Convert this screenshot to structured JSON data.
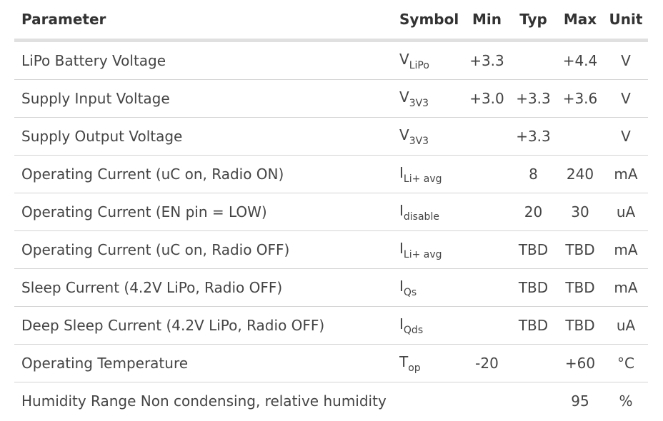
{
  "header": {
    "parameter": "Parameter",
    "symbol": "Symbol",
    "min": "Min",
    "typ": "Typ",
    "max": "Max",
    "unit": "Unit"
  },
  "rows": [
    {
      "parameter": "LiPo Battery Voltage",
      "symbol_base": "V",
      "symbol_sub": "LiPo",
      "min": "+3.3",
      "typ": "",
      "max": "+4.4",
      "unit": "V"
    },
    {
      "parameter": "Supply Input Voltage",
      "symbol_base": "V",
      "symbol_sub": "3V3",
      "min": "+3.0",
      "typ": "+3.3",
      "max": "+3.6",
      "unit": "V"
    },
    {
      "parameter": "Supply Output Voltage",
      "symbol_base": "V",
      "symbol_sub": "3V3",
      "min": "",
      "typ": "+3.3",
      "max": "",
      "unit": "V"
    },
    {
      "parameter": "Operating Current (uC on, Radio ON)",
      "symbol_base": "I",
      "symbol_sub": "Li+ avg",
      "min": "",
      "typ": "8",
      "max": "240",
      "unit": "mA"
    },
    {
      "parameter": "Operating Current (EN pin = LOW)",
      "symbol_base": "I",
      "symbol_sub": "disable",
      "min": "",
      "typ": "20",
      "max": "30",
      "unit": "uA"
    },
    {
      "parameter": "Operating Current (uC on, Radio OFF)",
      "symbol_base": "I",
      "symbol_sub": "Li+ avg",
      "min": "",
      "typ": "TBD",
      "max": "TBD",
      "unit": "mA"
    },
    {
      "parameter": "Sleep Current (4.2V LiPo, Radio OFF)",
      "symbol_base": "I",
      "symbol_sub": "Qs",
      "min": "",
      "typ": "TBD",
      "max": "TBD",
      "unit": "mA"
    },
    {
      "parameter": "Deep Sleep Current (4.2V LiPo, Radio OFF)",
      "symbol_base": "I",
      "symbol_sub": "Qds",
      "min": "",
      "typ": "TBD",
      "max": "TBD",
      "unit": "uA"
    },
    {
      "parameter": "Operating Temperature",
      "symbol_base": "T",
      "symbol_sub": "op",
      "min": "-20",
      "typ": "",
      "max": "+60",
      "unit": "°C"
    },
    {
      "parameter": "Humidity Range Non condensing, relative humidity",
      "symbol_base": "",
      "symbol_sub": "",
      "min": "",
      "typ": "",
      "max": "95",
      "unit": "%"
    }
  ]
}
